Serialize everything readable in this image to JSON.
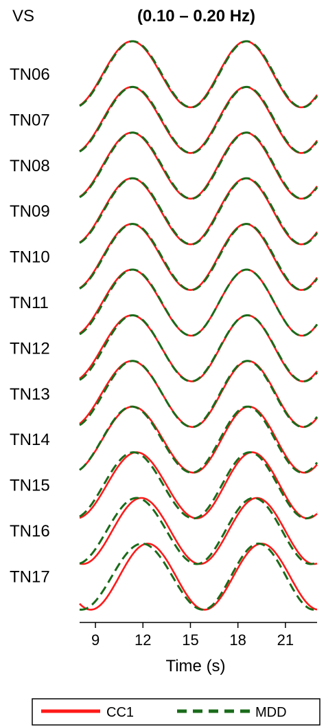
{
  "chart_data": {
    "type": "line",
    "component_label": "VS",
    "title": "(0.10 – 0.20 Hz)",
    "xlabel": "Time (s)",
    "xlim": [
      8,
      23
    ],
    "xticks": [
      9,
      12,
      15,
      18,
      21
    ],
    "grid": false,
    "legend_position": "bottom",
    "stations": [
      "TN06",
      "TN07",
      "TN08",
      "TN09",
      "TN10",
      "TN11",
      "TN12",
      "TN13",
      "TN14",
      "TN15",
      "TN16",
      "TN17"
    ],
    "series": [
      {
        "name": "CC1",
        "color": "#ff1a1a",
        "dash": "solid",
        "peak1_time": [
          11.3,
          11.3,
          11.3,
          11.3,
          11.3,
          11.3,
          11.3,
          11.3,
          11.35,
          11.6,
          11.9,
          12.3
        ],
        "trough_time": [
          15.0,
          15.0,
          15.0,
          15.0,
          15.0,
          15.05,
          15.1,
          15.15,
          15.2,
          15.4,
          15.6,
          15.9
        ],
        "peak2_time": [
          18.5,
          18.5,
          18.5,
          18.5,
          18.5,
          18.55,
          18.6,
          18.65,
          18.7,
          18.9,
          19.2,
          19.5
        ]
      },
      {
        "name": "MDD",
        "color": "#1a6b1a",
        "dash": "dashed",
        "peak1_time": [
          11.35,
          11.35,
          11.35,
          11.35,
          11.35,
          11.35,
          11.35,
          11.35,
          11.3,
          11.4,
          11.6,
          11.95
        ],
        "trough_time": [
          15.05,
          15.05,
          15.05,
          15.05,
          15.05,
          15.05,
          15.05,
          15.1,
          15.1,
          15.2,
          15.4,
          15.8
        ],
        "peak2_time": [
          18.55,
          18.55,
          18.55,
          18.55,
          18.55,
          18.55,
          18.6,
          18.6,
          18.6,
          18.75,
          19.0,
          19.3
        ]
      }
    ]
  }
}
